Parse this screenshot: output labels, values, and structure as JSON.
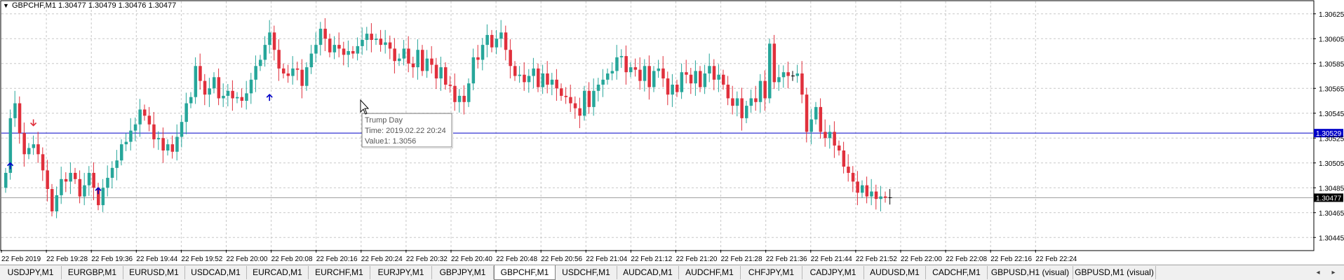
{
  "header": {
    "symbol_line": "GBPCHF,M1  1.30477 1.30479 1.30476 1.30477",
    "dropdown_glyph": "▼"
  },
  "tooltip": {
    "title": "Trump Day",
    "time": "Time: 2019.02.22 20:24",
    "value": "Value1: 1.3056"
  },
  "chart_data": {
    "type": "candlestick",
    "symbol": "GBPCHF",
    "timeframe": "M1",
    "ylim": [
      1.30435,
      1.30635
    ],
    "price_ticks": [
      "1.30625",
      "1.30605",
      "1.30585",
      "1.30565",
      "1.30545",
      "1.30525",
      "1.30505",
      "1.30485",
      "1.30465",
      "1.30445"
    ],
    "time_ticks": [
      "22 Feb 2019",
      "22 Feb 19:28",
      "22 Feb 19:36",
      "22 Feb 19:44",
      "22 Feb 19:52",
      "22 Feb 20:00",
      "22 Feb 20:08",
      "22 Feb 20:16",
      "22 Feb 20:24",
      "22 Feb 20:32",
      "22 Feb 20:40",
      "22 Feb 20:48",
      "22 Feb 20:56",
      "22 Feb 21:04",
      "22 Feb 21:12",
      "22 Feb 21:20",
      "22 Feb 21:28",
      "22 Feb 21:36",
      "22 Feb 21:44",
      "22 Feb 21:52",
      "22 Feb 22:00",
      "22 Feb 22:08",
      "22 Feb 22:16",
      "22 Feb 22:24"
    ],
    "hline": {
      "value": 1.30529,
      "label": "1.30529",
      "color": "#0000c8"
    },
    "bid_line": {
      "value": 1.30477,
      "label": "1.30477",
      "color": "#000000"
    },
    "bull_color": "#26a69a",
    "bear_color": "#e0303c",
    "closes": [
      1.30497,
      1.30541,
      1.30553,
      1.30529,
      1.30512,
      1.30517,
      1.3052,
      1.30512,
      1.30499,
      1.30484,
      1.30466,
      1.30479,
      1.30492,
      1.3049,
      1.30497,
      1.30492,
      1.30478,
      1.30487,
      1.30497,
      1.30485,
      1.30471,
      1.30485,
      1.30493,
      1.30501,
      1.30507,
      1.3052,
      1.30522,
      1.30531,
      1.30536,
      1.30548,
      1.30543,
      1.30536,
      1.30524,
      1.30525,
      1.30515,
      1.3052,
      1.30514,
      1.30526,
      1.30538,
      1.30553,
      1.30558,
      1.30583,
      1.30571,
      1.3056,
      1.30565,
      1.30574,
      1.30557,
      1.30559,
      1.30563,
      1.30557,
      1.30558,
      1.30555,
      1.30561,
      1.30572,
      1.30583,
      1.30588,
      1.306,
      1.3061,
      1.30596,
      1.30581,
      1.30577,
      1.30575,
      1.30581,
      1.3058,
      1.30567,
      1.30582,
      1.30593,
      1.306,
      1.30613,
      1.30605,
      1.30594,
      1.306,
      1.30597,
      1.30592,
      1.30595,
      1.30593,
      1.30599,
      1.30604,
      1.30609,
      1.30604,
      1.30605,
      1.306,
      1.30602,
      1.30597,
      1.30587,
      1.30589,
      1.30597,
      1.30585,
      1.30582,
      1.30596,
      1.30579,
      1.30589,
      1.30584,
      1.30573,
      1.30582,
      1.30568,
      1.30567,
      1.30554,
      1.30559,
      1.30554,
      1.30569,
      1.3059,
      1.30588,
      1.306,
      1.30608,
      1.30598,
      1.30605,
      1.3061,
      1.30596,
      1.30583,
      1.30575,
      1.30576,
      1.3057,
      1.30575,
      1.30581,
      1.30566,
      1.30577,
      1.30568,
      1.30572,
      1.30565,
      1.30559,
      1.30558,
      1.30553,
      1.30549,
      1.30543,
      1.30563,
      1.3055,
      1.30563,
      1.30568,
      1.30572,
      1.30577,
      1.30579,
      1.3059,
      1.30591,
      1.30578,
      1.30582,
      1.3058,
      1.30571,
      1.30583,
      1.30566,
      1.30579,
      1.30581,
      1.30573,
      1.3056,
      1.30568,
      1.30562,
      1.30578,
      1.30576,
      1.30569,
      1.30579,
      1.30566,
      1.30577,
      1.30583,
      1.30572,
      1.30576,
      1.30568,
      1.30557,
      1.30551,
      1.30557,
      1.30541,
      1.30551,
      1.30557,
      1.30554,
      1.30571,
      1.30557,
      1.30601,
      1.3057,
      1.30574,
      1.30578,
      1.30575,
      1.30575,
      1.30577,
      1.3056,
      1.3053,
      1.3054,
      1.3055,
      1.3053,
      1.30525,
      1.3053,
      1.30519,
      1.30515,
      1.30502,
      1.30497,
      1.3049,
      1.30481,
      1.30487,
      1.30478,
      1.30482,
      1.30476,
      1.30478,
      1.30477,
      1.30477
    ],
    "arrows_up": [
      {
        "bar": 1,
        "value": 1.30505
      },
      {
        "bar": 20,
        "value": 1.30485
      },
      {
        "bar": 57,
        "value": 1.3056
      }
    ],
    "arrows_down": [
      {
        "bar": 6,
        "value": 1.30535
      }
    ],
    "tooltip_bar": 57
  },
  "tabs": [
    {
      "label": "USDJPY,M1",
      "active": false
    },
    {
      "label": "EURGBP,M1",
      "active": false
    },
    {
      "label": "EURUSD,M1",
      "active": false
    },
    {
      "label": "USDCAD,M1",
      "active": false
    },
    {
      "label": "EURCAD,M1",
      "active": false
    },
    {
      "label": "EURCHF,M1",
      "active": false
    },
    {
      "label": "EURJPY,M1",
      "active": false
    },
    {
      "label": "GBPJPY,M1",
      "active": false
    },
    {
      "label": "GBPCHF,M1",
      "active": true
    },
    {
      "label": "USDCHF,M1",
      "active": false
    },
    {
      "label": "AUDCAD,M1",
      "active": false
    },
    {
      "label": "AUDCHF,M1",
      "active": false
    },
    {
      "label": "CHFJPY,M1",
      "active": false
    },
    {
      "label": "CADJPY,M1",
      "active": false
    },
    {
      "label": "AUDUSD,M1",
      "active": false
    },
    {
      "label": "CADCHF,M1",
      "active": false
    },
    {
      "label": "GBPUSD,H1 (visual)",
      "active": false
    },
    {
      "label": "GBPUSD,M1 (visual)",
      "active": false
    }
  ],
  "tab_scroll": {
    "left": "◂",
    "right": "▸"
  }
}
